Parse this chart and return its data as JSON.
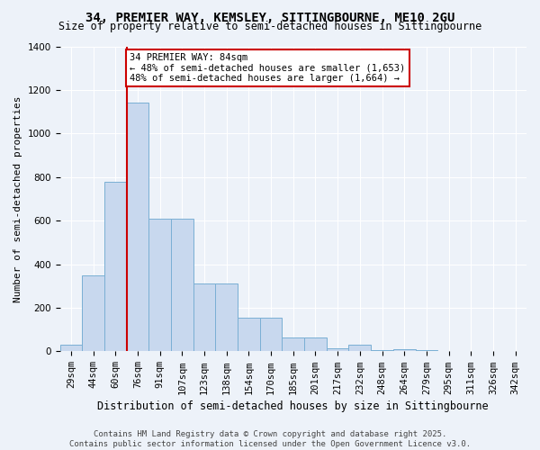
{
  "title1": "34, PREMIER WAY, KEMSLEY, SITTINGBOURNE, ME10 2GU",
  "title2": "Size of property relative to semi-detached houses in Sittingbourne",
  "xlabel": "Distribution of semi-detached houses by size in Sittingbourne",
  "ylabel": "Number of semi-detached properties",
  "categories": [
    "29sqm",
    "44sqm",
    "60sqm",
    "76sqm",
    "91sqm",
    "107sqm",
    "123sqm",
    "138sqm",
    "154sqm",
    "170sqm",
    "185sqm",
    "201sqm",
    "217sqm",
    "232sqm",
    "248sqm",
    "264sqm",
    "279sqm",
    "295sqm",
    "311sqm",
    "326sqm",
    "342sqm"
  ],
  "values": [
    30,
    350,
    780,
    1140,
    610,
    610,
    310,
    310,
    155,
    155,
    65,
    65,
    15,
    30,
    5,
    10,
    5,
    0,
    0,
    0,
    0
  ],
  "bar_color": "#c8d8ee",
  "bar_edge_color": "#7aafd4",
  "vline_color": "#cc0000",
  "vline_x_index": 3,
  "annotation_text": "34 PREMIER WAY: 84sqm\n← 48% of semi-detached houses are smaller (1,653)\n48% of semi-detached houses are larger (1,664) →",
  "annotation_box_color": "#ffffff",
  "annotation_box_edge": "#cc0000",
  "ylim": [
    0,
    1400
  ],
  "yticks": [
    0,
    200,
    400,
    600,
    800,
    1000,
    1200,
    1400
  ],
  "footer": "Contains HM Land Registry data © Crown copyright and database right 2025.\nContains public sector information licensed under the Open Government Licence v3.0.",
  "bg_color": "#edf2f9",
  "plot_bg_color": "#edf2f9",
  "title_fontsize": 10,
  "subtitle_fontsize": 8.5,
  "ylabel_fontsize": 8,
  "xlabel_fontsize": 8.5,
  "tick_fontsize": 7.5,
  "footer_fontsize": 6.5
}
